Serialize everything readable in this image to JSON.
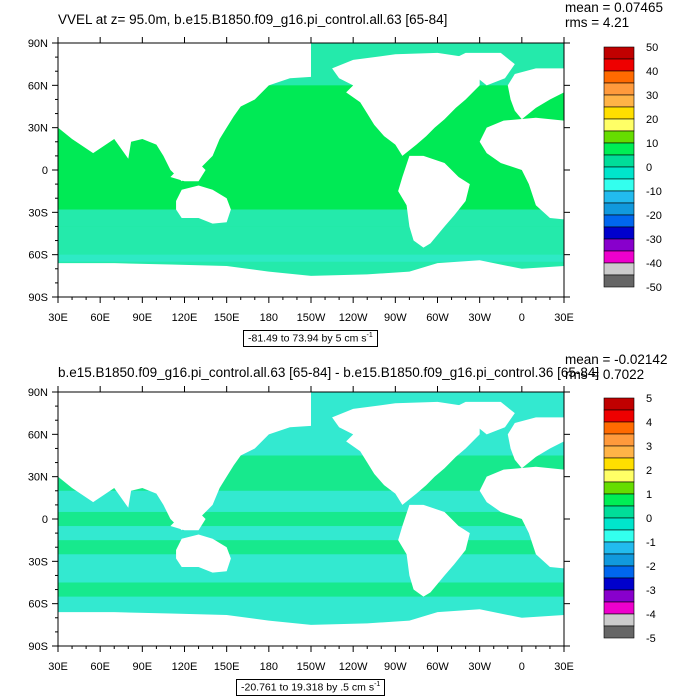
{
  "panels": [
    {
      "title": "VVEL at z=  95.0m, b.e15.B1850.f09_g16.pi_control.all.63 [65-84]",
      "mean_text": "mean = 0.07465",
      "rms_text": "rms = 4.21",
      "range_text": "-81.49 to 73.94 by 5 cm s",
      "range_exp": "-1",
      "colorbar_labels": [
        "50",
        "40",
        "30",
        "20",
        "10",
        "0",
        "-10",
        "-20",
        "-30",
        "-40",
        "-50"
      ]
    },
    {
      "title": "b.e15.B1850.f09_g16.pi_control.all.63 [65-84] - b.e15.B1850.f09_g16.pi_control.36 [65-84]",
      "mean_text": "mean = -0.02142",
      "rms_text": "rms = 0.7022",
      "range_text": "-20.761 to 19.318 by .5 cm s",
      "range_exp": "-1",
      "colorbar_labels": [
        "5",
        "4",
        "3",
        "2",
        "1",
        "0",
        "-1",
        "-2",
        "-3",
        "-4",
        "-5"
      ]
    }
  ],
  "lat_labels": [
    "90N",
    "60N",
    "30N",
    "0",
    "30S",
    "60S",
    "90S"
  ],
  "lon_labels": [
    "30E",
    "60E",
    "90E",
    "120E",
    "150E",
    "180",
    "150W",
    "120W",
    "90W",
    "60W",
    "30W",
    "0",
    "30E"
  ],
  "colorbar_colors": [
    "#c00000",
    "#ee0000",
    "#ff6a00",
    "#ff9a3c",
    "#ffb347",
    "#ffdf00",
    "#ffff66",
    "#66dd00",
    "#00ee55",
    "#00dd99",
    "#00e5cc",
    "#33ffee",
    "#22bbee",
    "#1199dd",
    "#0066ee",
    "#0000cc",
    "#8800cc",
    "#ee00cc",
    "#cccccc",
    "#666666"
  ],
  "colors": {
    "ocean_main": "#00ea55",
    "ocean_alt": "#33e9d0",
    "land": "#ffffff"
  }
}
